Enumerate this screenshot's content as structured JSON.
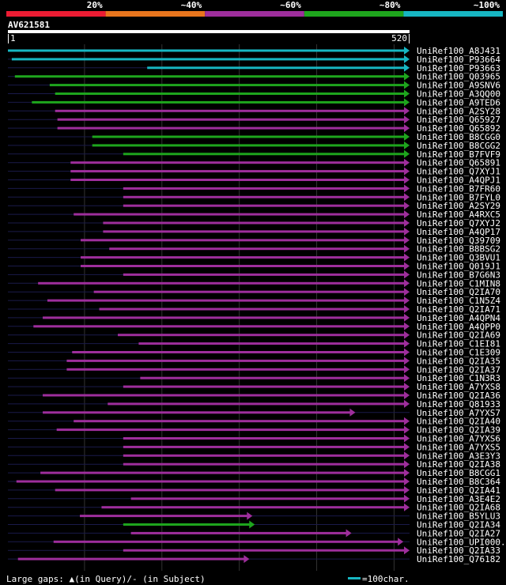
{
  "chart_data": {
    "type": "alignment",
    "query_name": "AV621581",
    "query_length": 520,
    "axis_start_label": "1",
    "axis_end_label": "520",
    "identity_legend": [
      {
        "label": "20%",
        "color": "#ec1c33"
      },
      {
        "label": "~40%",
        "color": "#e8751d"
      },
      {
        "label": "~60%",
        "color": "#9e2e9c"
      },
      {
        "label": "~80%",
        "color": "#1ea51d"
      },
      {
        "label": "~100%",
        "color": "#17b6c2"
      }
    ],
    "footer_text": "Large gaps: ▲(in Query)/- (in Subject)",
    "scale_text": "=100char.",
    "hits": [
      {
        "name": "UniRef100_A8J431",
        "start": 1,
        "end": 520,
        "color": "#17b6c2",
        "arrow": "end"
      },
      {
        "name": "UniRef100_P93664",
        "start": 6,
        "end": 520,
        "color": "#17b6c2",
        "arrow": "end"
      },
      {
        "name": "UniRef100_P93663",
        "start": 181,
        "end": 520,
        "color": "#17b6c2",
        "arrow": "end"
      },
      {
        "name": "UniRef100_Q03965",
        "start": 10,
        "end": 520,
        "color": "#1ea51d",
        "arrow": "end"
      },
      {
        "name": "UniRef100_A9SNV6",
        "start": 55,
        "end": 520,
        "color": "#1ea51d",
        "arrow": "end"
      },
      {
        "name": "UniRef100_A3QQ00",
        "start": 62,
        "end": 520,
        "color": "#1ea51d",
        "arrow": "end"
      },
      {
        "name": "UniRef100_A9TED6",
        "start": 32,
        "end": 520,
        "color": "#1ea51d",
        "arrow": "end"
      },
      {
        "name": "UniRef100_A2SY28",
        "start": 62,
        "end": 520,
        "color": "#9e2e9c",
        "arrow": "end"
      },
      {
        "name": "UniRef100_Q65927",
        "start": 65,
        "end": 520,
        "color": "#9e2e9c",
        "arrow": "end"
      },
      {
        "name": "UniRef100_Q65892",
        "start": 65,
        "end": 520,
        "color": "#9e2e9c",
        "arrow": "end"
      },
      {
        "name": "UniRef100_B8CGG0",
        "start": 110,
        "end": 520,
        "color": "#1ea51d",
        "arrow": "end"
      },
      {
        "name": "UniRef100_B8CGG2",
        "start": 110,
        "end": 520,
        "color": "#1ea51d",
        "arrow": "end"
      },
      {
        "name": "UniRef100_B7FVF9",
        "start": 150,
        "end": 520,
        "color": "#1ea51d",
        "arrow": "end"
      },
      {
        "name": "UniRef100_Q65891",
        "start": 82,
        "end": 520,
        "color": "#9e2e9c",
        "arrow": "end"
      },
      {
        "name": "UniRef100_Q7XYJ1",
        "start": 82,
        "end": 520,
        "color": "#9e2e9c",
        "arrow": "end"
      },
      {
        "name": "UniRef100_A4QPJ1",
        "start": 82,
        "end": 520,
        "color": "#9e2e9c",
        "arrow": "end"
      },
      {
        "name": "UniRef100_B7FR60",
        "start": 150,
        "end": 520,
        "color": "#9e2e9c",
        "arrow": "end"
      },
      {
        "name": "UniRef100_B7FYL0",
        "start": 150,
        "end": 520,
        "color": "#9e2e9c",
        "arrow": "end"
      },
      {
        "name": "UniRef100_A2SY29",
        "start": 150,
        "end": 520,
        "color": "#9e2e9c",
        "arrow": "end"
      },
      {
        "name": "UniRef100_A4RXC5",
        "start": 86,
        "end": 520,
        "color": "#9e2e9c",
        "arrow": "end"
      },
      {
        "name": "UniRef100_Q7XYJ2",
        "start": 124,
        "end": 520,
        "color": "#9e2e9c",
        "arrow": "end"
      },
      {
        "name": "UniRef100_A4QP17",
        "start": 124,
        "end": 520,
        "color": "#9e2e9c",
        "arrow": "end"
      },
      {
        "name": "UniRef100_Q39709",
        "start": 95,
        "end": 520,
        "color": "#9e2e9c",
        "arrow": "end"
      },
      {
        "name": "UniRef100_B8BSG2",
        "start": 132,
        "end": 520,
        "color": "#9e2e9c",
        "arrow": "end"
      },
      {
        "name": "UniRef100_Q3BVU1",
        "start": 95,
        "end": 520,
        "color": "#9e2e9c",
        "arrow": "end"
      },
      {
        "name": "UniRef100_Q019J1",
        "start": 95,
        "end": 520,
        "color": "#9e2e9c",
        "arrow": "end"
      },
      {
        "name": "UniRef100_B7G6N3",
        "start": 150,
        "end": 520,
        "color": "#9e2e9c",
        "arrow": "end"
      },
      {
        "name": "UniRef100_C1MIN8",
        "start": 40,
        "end": 520,
        "color": "#9e2e9c",
        "arrow": "end"
      },
      {
        "name": "UniRef100_Q2IA70",
        "start": 112,
        "end": 520,
        "color": "#9e2e9c",
        "arrow": "end"
      },
      {
        "name": "UniRef100_C1N5Z4",
        "start": 52,
        "end": 520,
        "color": "#9e2e9c",
        "arrow": "end"
      },
      {
        "name": "UniRef100_Q2IA71",
        "start": 119,
        "end": 520,
        "color": "#9e2e9c",
        "arrow": "end"
      },
      {
        "name": "UniRef100_A4QPN4",
        "start": 46,
        "end": 520,
        "color": "#9e2e9c",
        "arrow": "end"
      },
      {
        "name": "UniRef100_A4QPP0",
        "start": 34,
        "end": 520,
        "color": "#9e2e9c",
        "arrow": "end"
      },
      {
        "name": "UniRef100_Q2IA69",
        "start": 143,
        "end": 520,
        "color": "#9e2e9c",
        "arrow": "end"
      },
      {
        "name": "UniRef100_C1EI81",
        "start": 170,
        "end": 520,
        "color": "#9e2e9c",
        "arrow": "end"
      },
      {
        "name": "UniRef100_C1E309",
        "start": 84,
        "end": 520,
        "color": "#9e2e9c",
        "arrow": "end"
      },
      {
        "name": "UniRef100_Q2IA35",
        "start": 77,
        "end": 520,
        "color": "#9e2e9c",
        "arrow": "end"
      },
      {
        "name": "UniRef100_Q2IA37",
        "start": 77,
        "end": 520,
        "color": "#9e2e9c",
        "arrow": "end"
      },
      {
        "name": "UniRef100_C1N3R3",
        "start": 172,
        "end": 520,
        "color": "#9e2e9c",
        "arrow": "end"
      },
      {
        "name": "UniRef100_A7YXS8",
        "start": 150,
        "end": 520,
        "color": "#9e2e9c",
        "arrow": "end"
      },
      {
        "name": "UniRef100_Q2IA36",
        "start": 46,
        "end": 520,
        "color": "#9e2e9c",
        "arrow": "end"
      },
      {
        "name": "UniRef100_Q81933",
        "start": 130,
        "end": 520,
        "color": "#9e2e9c",
        "arrow": "end"
      },
      {
        "name": "UniRef100_A7YXS7",
        "start": 46,
        "end": 450,
        "color": "#9e2e9c",
        "arrow": "end"
      },
      {
        "name": "UniRef100_Q2IA40",
        "start": 86,
        "end": 520,
        "color": "#9e2e9c",
        "arrow": "end"
      },
      {
        "name": "UniRef100_Q2IA39",
        "start": 64,
        "end": 520,
        "color": "#9e2e9c",
        "arrow": "end"
      },
      {
        "name": "UniRef100_A7YXS6",
        "start": 150,
        "end": 520,
        "color": "#9e2e9c",
        "arrow": "end"
      },
      {
        "name": "UniRef100_A7YXS5",
        "start": 150,
        "end": 520,
        "color": "#9e2e9c",
        "arrow": "end"
      },
      {
        "name": "UniRef100_A3E3Y3",
        "start": 150,
        "end": 520,
        "color": "#9e2e9c",
        "arrow": "end"
      },
      {
        "name": "UniRef100_Q2IA38",
        "start": 150,
        "end": 520,
        "color": "#9e2e9c",
        "arrow": "end"
      },
      {
        "name": "UniRef100_B8CGG1",
        "start": 43,
        "end": 520,
        "color": "#9e2e9c",
        "arrow": "end"
      },
      {
        "name": "UniRef100_B8C364",
        "start": 12,
        "end": 520,
        "color": "#9e2e9c",
        "arrow": "end"
      },
      {
        "name": "UniRef100_Q2IA41",
        "start": 62,
        "end": 520,
        "color": "#9e2e9c",
        "arrow": "end"
      },
      {
        "name": "UniRef100_A3E4E2",
        "start": 160,
        "end": 520,
        "color": "#9e2e9c",
        "arrow": "end"
      },
      {
        "name": "UniRef100_Q2IA68",
        "start": 122,
        "end": 520,
        "color": "#9e2e9c",
        "arrow": "end"
      },
      {
        "name": "UniRef100_B5YLU3",
        "start": 94,
        "end": 317,
        "color": "#9e2e9c",
        "arrow": "end"
      },
      {
        "name": "UniRef100_Q2IA34",
        "start": 150,
        "end": 320,
        "color": "#1ea51d",
        "arrow": "end"
      },
      {
        "name": "UniRef100_Q2IA27",
        "start": 160,
        "end": 445,
        "color": "#9e2e9c",
        "arrow": "end"
      },
      {
        "name": "UniRef100_UPI000..",
        "start": 60,
        "end": 512,
        "color": "#9e2e9c",
        "arrow": "end"
      },
      {
        "name": "UniRef100_Q2IA33",
        "start": 150,
        "end": 520,
        "color": "#9e2e9c",
        "arrow": "end"
      },
      {
        "name": "UniRef100_Q76182",
        "start": 14,
        "end": 313,
        "color": "#9e2e9c",
        "arrow": "end"
      }
    ]
  }
}
